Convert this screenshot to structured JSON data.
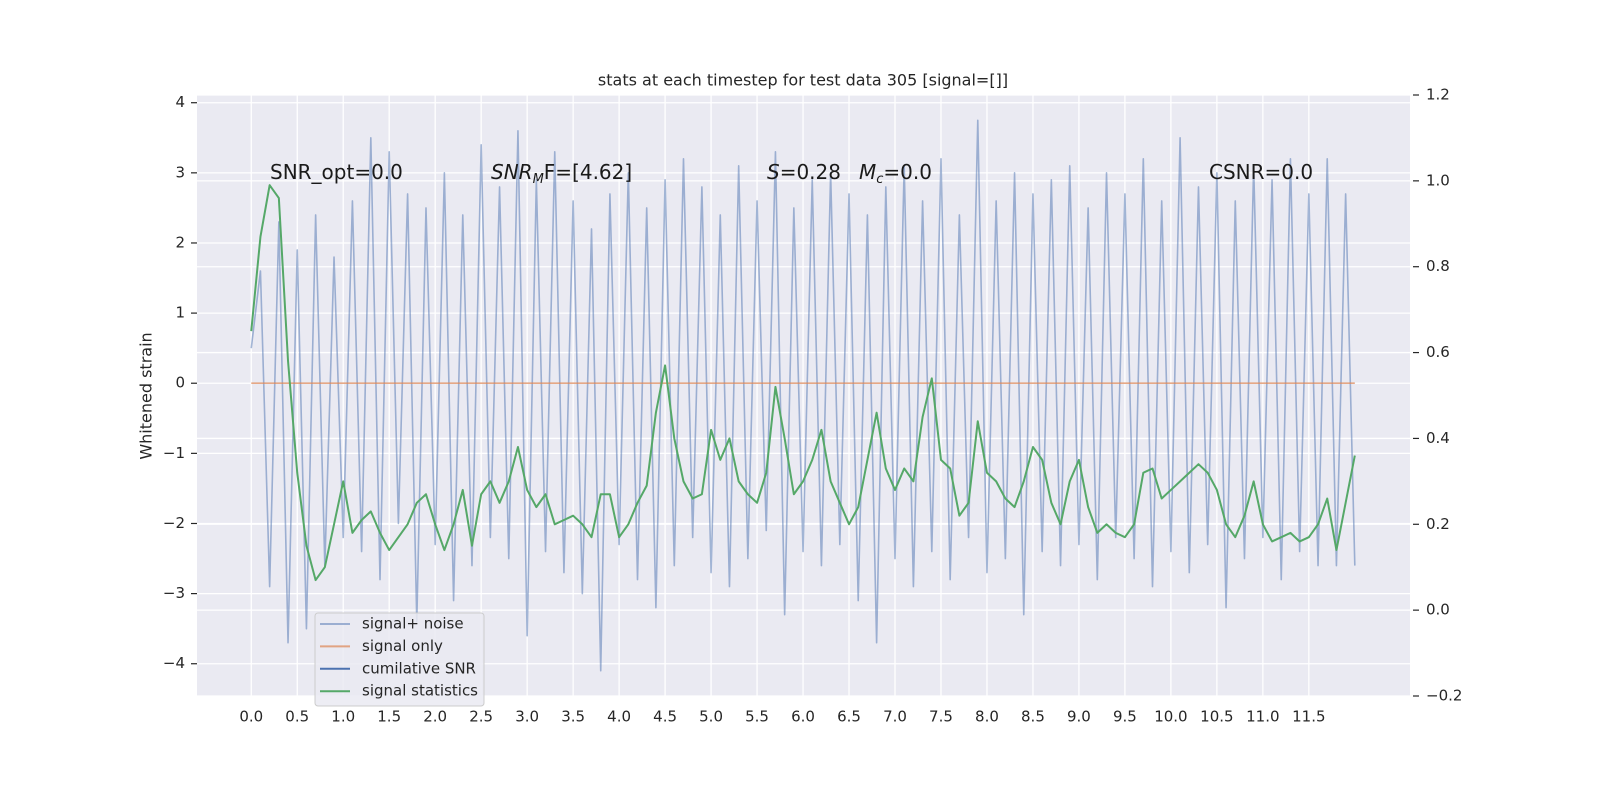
{
  "chart_data": {
    "type": "line",
    "title": "stats at each timestep for test data 305 [signal=[]]",
    "ylabel": "Whitened strain",
    "grid": true,
    "legend": "lower left",
    "xlim": [
      -0.59,
      12.6
    ],
    "ylim": [
      -4.46,
      4.11
    ],
    "y2lim": [
      -0.2,
      1.2
    ],
    "xticks": [
      {
        "value": 0,
        "label": "0.0"
      },
      0.5,
      {
        "value": 1,
        "label": "1.0"
      },
      1.5,
      {
        "value": 2,
        "label": "2.0"
      },
      2.5,
      {
        "value": 3,
        "label": "3.0"
      },
      3.5,
      {
        "value": 4,
        "label": "4.0"
      },
      4.5,
      {
        "value": 5,
        "label": "5.0"
      },
      5.5,
      {
        "value": 6,
        "label": "6.0"
      },
      6.5,
      {
        "value": 7,
        "label": "7.0"
      },
      7.5,
      {
        "value": 8,
        "label": "8.0"
      },
      8.5,
      {
        "value": 9,
        "label": "9.0"
      },
      9.5,
      {
        "value": 10,
        "label": "10.0"
      },
      10.5,
      {
        "value": 11,
        "label": "11.0"
      },
      11.5
    ],
    "yticks": [
      {
        "value": -4,
        "label": "−4"
      },
      {
        "value": -3,
        "label": "−3"
      },
      {
        "value": -2,
        "label": "−2"
      },
      {
        "value": -1,
        "label": "−1"
      },
      0,
      1,
      2,
      3,
      4
    ],
    "y2ticks": [
      {
        "value": -0.2,
        "label": "−0.2"
      },
      {
        "value": 0,
        "label": "0.0"
      },
      0.2,
      0.4,
      0.6,
      0.8,
      {
        "value": 1,
        "label": "1.0"
      },
      1.2
    ],
    "annotations": [
      [
        {
          "text": "SNR_opt=0.0"
        }
      ],
      [
        {
          "text": "SNR",
          "italic": true
        },
        {
          "text": "M",
          "italic": true,
          "sub": true
        },
        {
          "text": "F=[4.62]"
        }
      ],
      [
        {
          "text": "S",
          "italic": true
        },
        {
          "text": "=0.28"
        }
      ],
      [
        {
          "text": "M",
          "italic": true
        },
        {
          "text": "c",
          "italic": true,
          "sub": true
        },
        {
          "text": "=0.0"
        }
      ],
      [
        {
          "text": "CSNR=0.0"
        }
      ]
    ],
    "x": [
      0,
      0.1,
      0.2,
      0.3,
      0.4,
      0.5,
      0.6,
      0.7,
      0.8,
      0.9,
      1,
      1.1,
      1.2,
      1.3,
      1.4,
      1.5,
      1.6,
      1.7,
      1.8,
      1.9,
      2,
      2.1,
      2.2,
      2.3,
      2.4,
      2.5,
      2.6,
      2.7,
      2.8,
      2.9,
      3,
      3.1,
      3.2,
      3.3,
      3.4,
      3.5,
      3.6,
      3.7,
      3.8,
      3.9,
      4,
      4.1,
      4.2,
      4.3,
      4.4,
      4.5,
      4.6,
      4.7,
      4.8,
      4.9,
      5,
      5.1,
      5.2,
      5.3,
      5.4,
      5.5,
      5.6,
      5.7,
      5.8,
      5.9,
      6,
      6.1,
      6.2,
      6.3,
      6.4,
      6.5,
      6.6,
      6.7,
      6.8,
      6.9,
      7,
      7.1,
      7.2,
      7.3,
      7.4,
      7.5,
      7.6,
      7.7,
      7.8,
      7.9,
      8,
      8.1,
      8.2,
      8.3,
      8.4,
      8.5,
      8.6,
      8.7,
      8.8,
      8.9,
      9,
      9.1,
      9.2,
      9.3,
      9.4,
      9.5,
      9.6,
      9.7,
      9.8,
      9.9,
      10,
      10.1,
      10.2,
      10.3,
      10.4,
      10.5,
      10.6,
      10.7,
      10.8,
      10.9,
      11,
      11.1,
      11.2,
      11.3,
      11.4,
      11.5,
      11.6,
      11.7,
      11.8,
      11.9,
      12
    ],
    "series": [
      {
        "name": "signal+ noise",
        "color": "#4c72b0",
        "opacity": 0.5,
        "values": [
          0.5,
          1.6,
          -2.9,
          2.3,
          -3.7,
          1.9,
          -3.5,
          2.4,
          -2.6,
          1.8,
          -2.2,
          2.6,
          -2.4,
          3.5,
          -2.8,
          3.3,
          -2.0,
          2.7,
          -3.4,
          2.5,
          -2.3,
          3.0,
          -3.1,
          2.4,
          -2.6,
          3.4,
          -2.2,
          2.8,
          -2.5,
          3.6,
          -3.6,
          2.9,
          -2.4,
          3.3,
          -2.7,
          2.6,
          -3.0,
          2.2,
          -4.1,
          2.7,
          -2.3,
          3.0,
          -2.8,
          2.5,
          -3.2,
          2.9,
          -2.6,
          3.2,
          -2.2,
          2.8,
          -2.7,
          2.4,
          -2.9,
          3.1,
          -2.5,
          2.6,
          -2.1,
          3.3,
          -3.3,
          2.5,
          -2.4,
          2.9,
          -2.6,
          3.0,
          -2.3,
          2.7,
          -3.1,
          2.4,
          -3.7,
          2.8,
          -2.5,
          3.1,
          -2.9,
          2.6,
          -2.4,
          3.2,
          -2.8,
          2.4,
          -2.2,
          3.75,
          -2.7,
          2.6,
          -2.5,
          3.0,
          -3.3,
          2.7,
          -2.4,
          2.9,
          -2.6,
          3.1,
          -2.3,
          2.5,
          -2.8,
          3.0,
          -2.2,
          2.7,
          -2.5,
          3.2,
          -2.9,
          2.6,
          -2.4,
          3.5,
          -2.7,
          2.8,
          -2.3,
          3.0,
          -3.2,
          2.6,
          -2.5,
          3.1,
          -2.2,
          2.9,
          -2.8,
          3.2,
          -2.4,
          2.7,
          -2.6,
          3.2,
          -2.6,
          2.7,
          -2.6
        ]
      },
      {
        "name": "signal only",
        "color": "#dd8452",
        "opacity": 0.7,
        "values": [
          0,
          0,
          0,
          0,
          0,
          0,
          0,
          0,
          0,
          0,
          0,
          0,
          0,
          0,
          0,
          0,
          0,
          0,
          0,
          0,
          0,
          0,
          0,
          0,
          0,
          0,
          0,
          0,
          0,
          0,
          0,
          0,
          0,
          0,
          0,
          0,
          0,
          0,
          0,
          0,
          0,
          0,
          0,
          0,
          0,
          0,
          0,
          0,
          0,
          0,
          0,
          0,
          0,
          0,
          0,
          0,
          0,
          0,
          0,
          0,
          0,
          0,
          0,
          0,
          0,
          0,
          0,
          0,
          0,
          0,
          0,
          0,
          0,
          0,
          0,
          0,
          0,
          0,
          0,
          0,
          0,
          0,
          0,
          0,
          0,
          0,
          0,
          0,
          0,
          0,
          0,
          0,
          0,
          0,
          0,
          0,
          0,
          0,
          0,
          0,
          0,
          0,
          0,
          0,
          0,
          0,
          0,
          0,
          0,
          0,
          0,
          0,
          0,
          0,
          0,
          0,
          0,
          0,
          0,
          0,
          0
        ]
      },
      {
        "name": "cumilative SNR",
        "color": "#4c72b0",
        "opacity": 1
      },
      {
        "name": "signal statistics",
        "color": "#55a868",
        "opacity": 1,
        "axis": "y2",
        "values": [
          0.65,
          0.87,
          0.99,
          0.96,
          0.58,
          0.32,
          0.15,
          0.07,
          0.1,
          0.2,
          0.3,
          0.18,
          0.21,
          0.23,
          0.18,
          0.14,
          0.17,
          0.2,
          0.25,
          0.27,
          0.2,
          0.14,
          0.2,
          0.28,
          0.15,
          0.27,
          0.3,
          0.25,
          0.3,
          0.38,
          0.28,
          0.24,
          0.27,
          0.2,
          0.21,
          0.22,
          0.2,
          0.17,
          0.27,
          0.27,
          0.17,
          0.2,
          0.25,
          0.29,
          0.46,
          0.57,
          0.4,
          0.3,
          0.26,
          0.27,
          0.42,
          0.35,
          0.4,
          0.3,
          0.27,
          0.25,
          0.32,
          0.52,
          0.4,
          0.27,
          0.3,
          0.35,
          0.42,
          0.3,
          0.25,
          0.2,
          0.24,
          0.35,
          0.46,
          0.33,
          0.28,
          0.33,
          0.3,
          0.45,
          0.54,
          0.35,
          0.33,
          0.22,
          0.25,
          0.44,
          0.32,
          0.3,
          0.26,
          0.24,
          0.3,
          0.38,
          0.35,
          0.25,
          0.2,
          0.3,
          0.35,
          0.24,
          0.18,
          0.2,
          0.18,
          0.17,
          0.2,
          0.32,
          0.33,
          0.26,
          0.28,
          0.3,
          0.32,
          0.34,
          0.32,
          0.28,
          0.2,
          0.17,
          0.22,
          0.3,
          0.2,
          0.16,
          0.17,
          0.18,
          0.16,
          0.17,
          0.2,
          0.26,
          0.14,
          0.25,
          0.36
        ]
      }
    ]
  }
}
